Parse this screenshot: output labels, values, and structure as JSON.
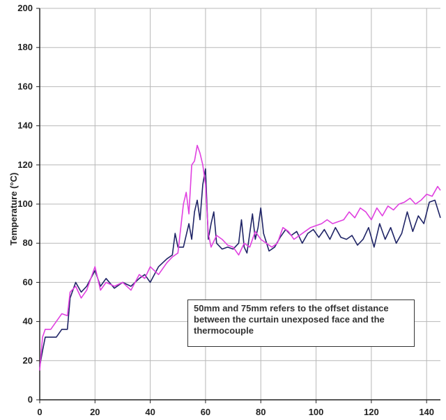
{
  "chart_data": {
    "type": "line",
    "title": "",
    "xlabel": "",
    "ylabel": "Temperature (°C)",
    "xlim": [
      0,
      145
    ],
    "ylim": [
      0,
      200
    ],
    "grid": true,
    "x_ticks": [
      0,
      20,
      40,
      60,
      80,
      100,
      120,
      140
    ],
    "y_ticks": [
      0,
      20,
      40,
      60,
      80,
      100,
      120,
      140,
      160,
      180,
      200
    ],
    "annotation": "50mm and 75mm refers to the offset distance between the curtain unexposed face and the thermocouple",
    "colors": {
      "navy": "#1f2466",
      "magenta": "#e040e0",
      "grid": "#b8b8b8",
      "axis": "#222222"
    },
    "series": [
      {
        "color": "#1f2466",
        "x": [
          0,
          1,
          2,
          4,
          6,
          8,
          10,
          11,
          13,
          15,
          17,
          20,
          22,
          24,
          27,
          30,
          33,
          36,
          38,
          40,
          43,
          46,
          48,
          49,
          50,
          52,
          54,
          55,
          56,
          57,
          58,
          59,
          60,
          61,
          62,
          63,
          64,
          66,
          68,
          70,
          72,
          73,
          74,
          75,
          77,
          78,
          79,
          80,
          81,
          83,
          85,
          87,
          89,
          91,
          93,
          95,
          97,
          99,
          101,
          103,
          105,
          107,
          109,
          111,
          113,
          115,
          117,
          119,
          121,
          123,
          125,
          127,
          129,
          131,
          133,
          135,
          137,
          139,
          141,
          143,
          145
        ],
        "y": [
          17,
          25,
          32,
          32,
          32,
          36,
          36,
          52,
          60,
          55,
          58,
          66,
          58,
          62,
          57,
          60,
          58,
          62,
          64,
          60,
          68,
          72,
          74,
          85,
          78,
          78,
          90,
          82,
          96,
          102,
          92,
          110,
          118,
          82,
          90,
          96,
          80,
          77,
          78,
          77,
          80,
          92,
          78,
          75,
          95,
          82,
          88,
          98,
          85,
          76,
          78,
          83,
          87,
          84,
          86,
          80,
          85,
          87,
          83,
          87,
          82,
          88,
          83,
          82,
          84,
          79,
          82,
          88,
          78,
          90,
          82,
          88,
          80,
          85,
          96,
          86,
          94,
          90,
          101,
          102,
          93
        ]
      },
      {
        "color": "#e040e0",
        "x": [
          0,
          1,
          2,
          4,
          6,
          8,
          10,
          11,
          13,
          15,
          17,
          20,
          22,
          24,
          27,
          30,
          33,
          36,
          38,
          40,
          43,
          46,
          48,
          50,
          52,
          53,
          54,
          55,
          56,
          57,
          58,
          59,
          60,
          61,
          62,
          64,
          66,
          68,
          70,
          72,
          74,
          76,
          78,
          80,
          82,
          84,
          86,
          88,
          90,
          92,
          94,
          96,
          98,
          100,
          102,
          104,
          106,
          108,
          110,
          112,
          114,
          116,
          118,
          120,
          122,
          124,
          126,
          128,
          130,
          132,
          134,
          136,
          138,
          140,
          142,
          144,
          145
        ],
        "y": [
          15,
          32,
          36,
          36,
          40,
          44,
          43,
          55,
          58,
          52,
          56,
          68,
          56,
          60,
          58,
          60,
          56,
          64,
          62,
          68,
          64,
          70,
          73,
          75,
          100,
          106,
          95,
          120,
          122,
          130,
          126,
          120,
          110,
          85,
          78,
          84,
          82,
          79,
          78,
          74,
          80,
          78,
          86,
          82,
          80,
          78,
          80,
          88,
          86,
          82,
          84,
          86,
          88,
          89,
          90,
          92,
          90,
          91,
          92,
          96,
          93,
          98,
          96,
          92,
          98,
          94,
          99,
          97,
          100,
          101,
          103,
          100,
          102,
          105,
          104,
          109,
          107
        ]
      }
    ]
  }
}
